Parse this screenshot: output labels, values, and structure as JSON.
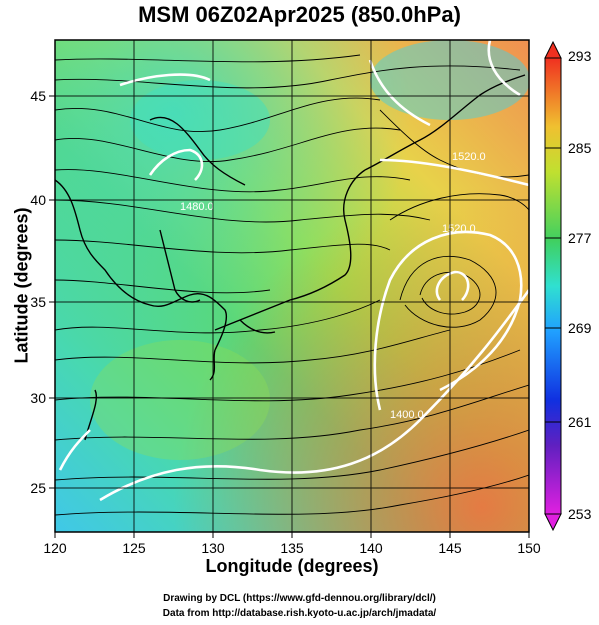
{
  "title": "MSM 06Z02Apr2025 (850.0hPa)",
  "x_axis": {
    "label": "Longitude (degrees)",
    "range": [
      120,
      150
    ],
    "ticks": [
      "120",
      "125",
      "130",
      "135",
      "140",
      "145",
      "150"
    ]
  },
  "y_axis": {
    "label": "Latitude  (degrees)",
    "range": [
      23,
      48
    ],
    "ticks": [
      "25",
      "30",
      "35",
      "40",
      "45"
    ]
  },
  "colorbar": {
    "range": [
      253,
      293
    ],
    "labels": [
      "293",
      "285",
      "277",
      "269",
      "261",
      "253"
    ]
  },
  "contour_labels": [
    "1520.0",
    "1520.0",
    "1480.0",
    "1400.0"
  ],
  "credits": {
    "line1": "Drawing by DCL (https://www.gfd-dennou.org/library/dcl/)",
    "line2": "Data from http://database.rish.kyoto-u.ac.jp/arch/jmadata/"
  }
}
